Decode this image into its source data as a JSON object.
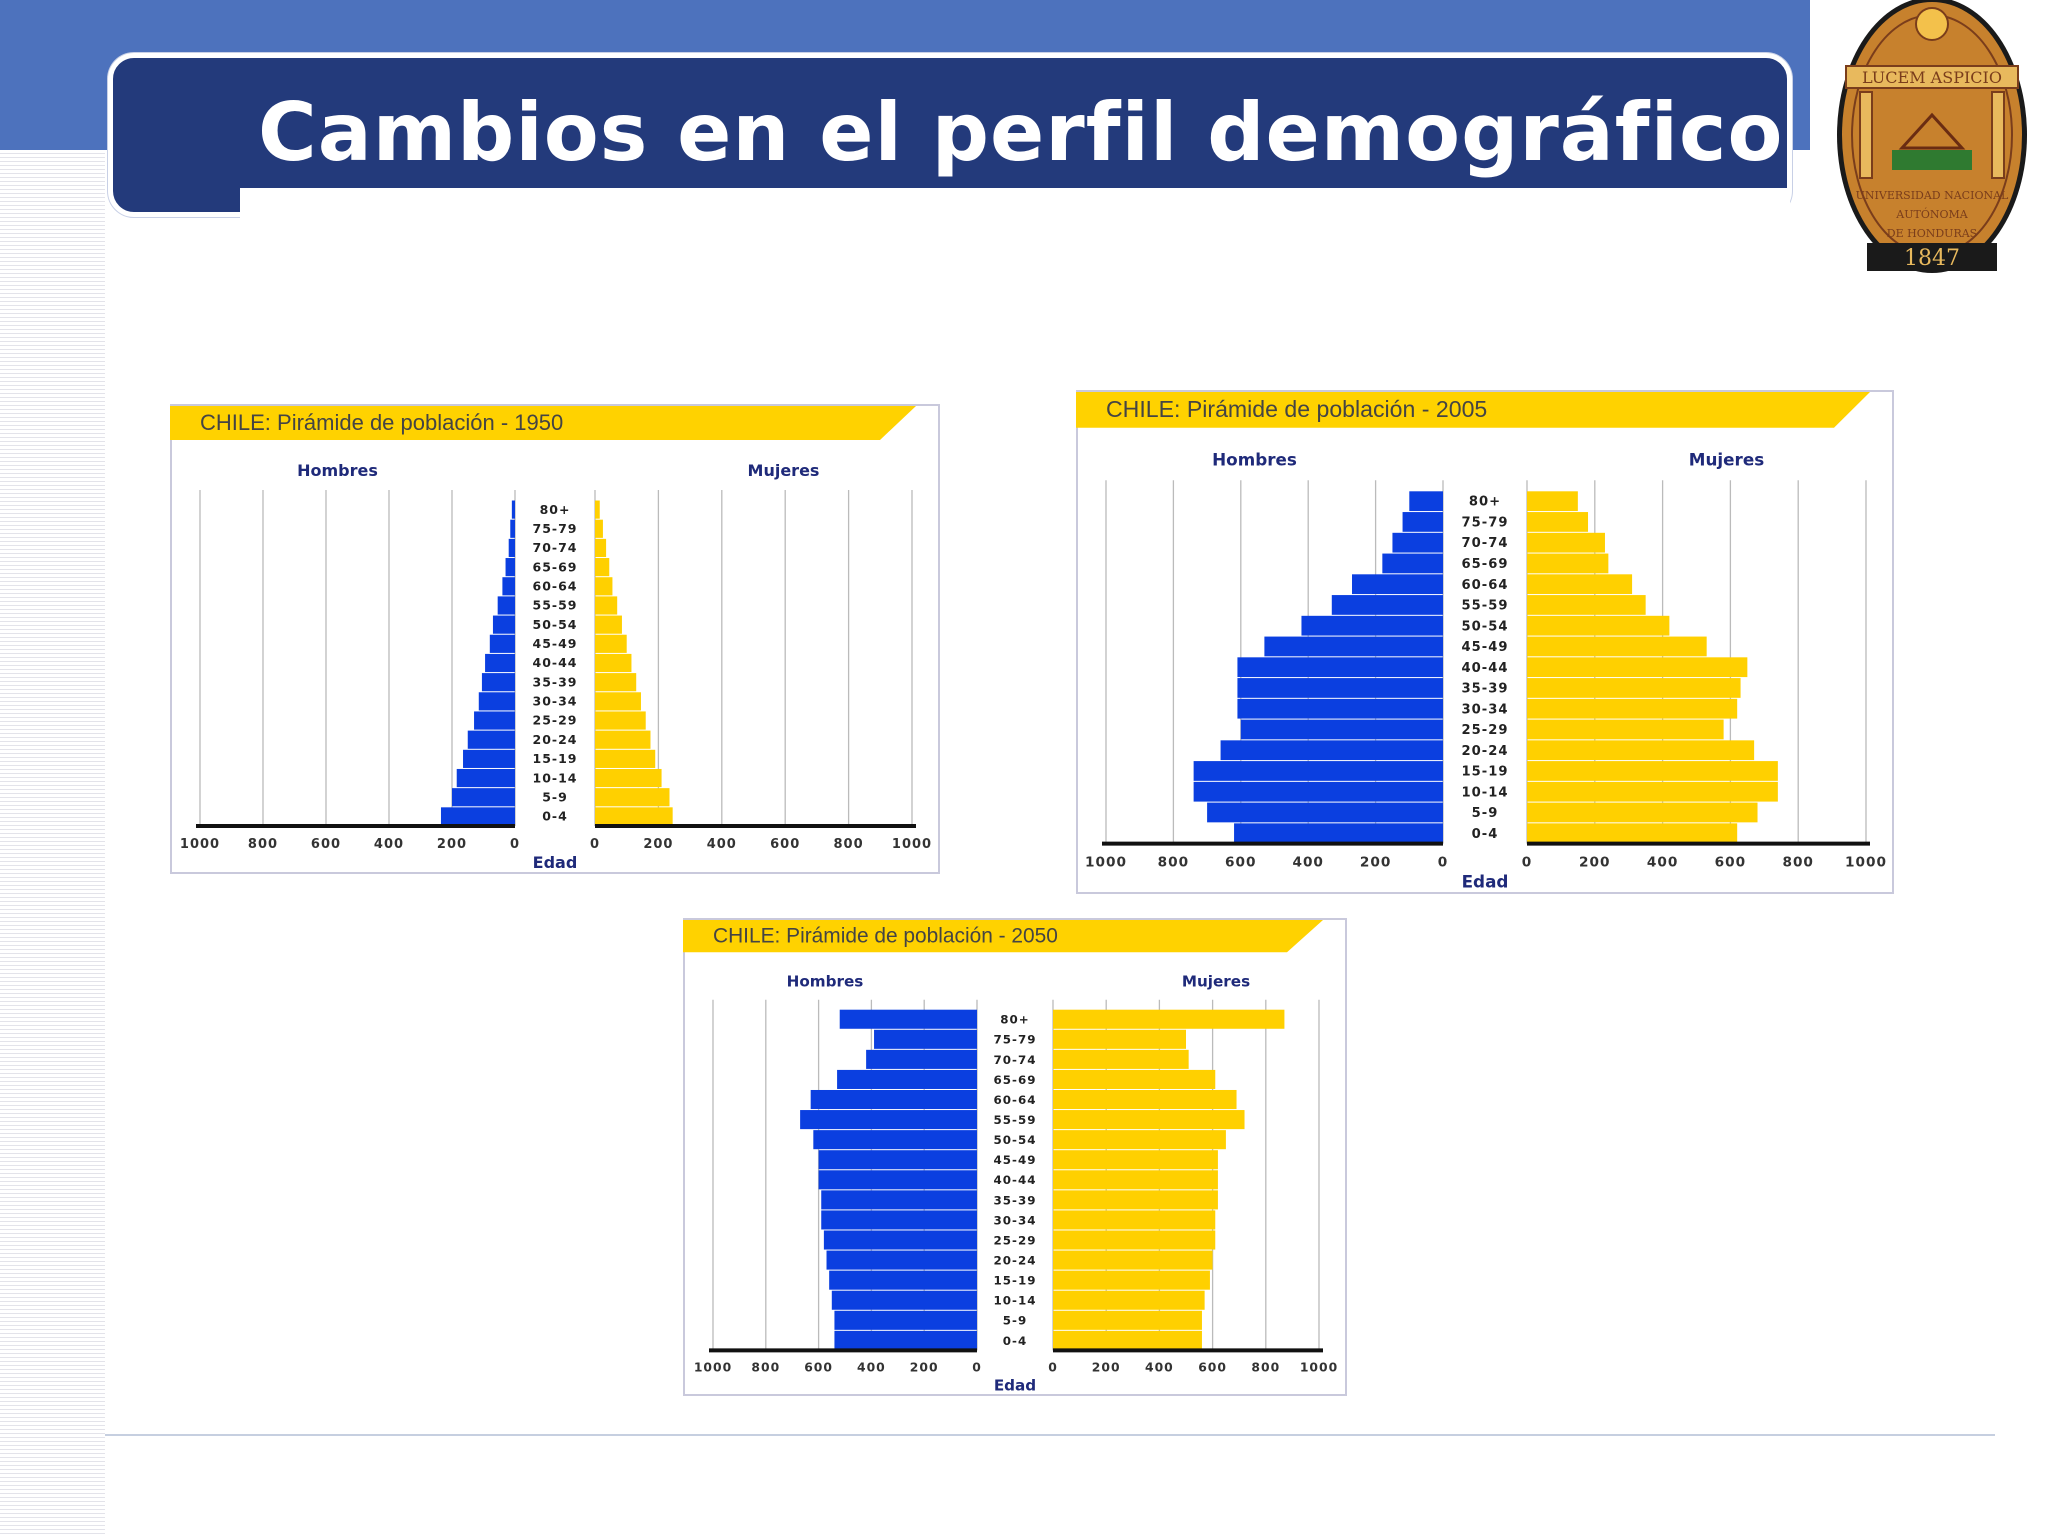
{
  "slide": {
    "title": "Cambios en el perfil demográfico"
  },
  "seal": {
    "motto": "LUCEM ASPICIO",
    "line1": "UNIVERSIDAD NACIONAL",
    "line2": "AUTÓNOMA",
    "line3": "DE HONDURAS",
    "year": "1847"
  },
  "colors": {
    "men": "#0b3fe0",
    "women": "#ffd000",
    "banner": "#ffd200",
    "title_bg": "#233a7b",
    "top_band": "#4d72bd"
  },
  "chart_data": [
    {
      "type": "bar",
      "title": "CHILE: Pirámide de población  - 1950",
      "xlabel": "Edad",
      "left_label": "Hombres",
      "right_label": "Mujeres",
      "categories": [
        "80+",
        "75-79",
        "70-74",
        "65-69",
        "60-64",
        "55-59",
        "50-54",
        "45-49",
        "40-44",
        "35-39",
        "30-34",
        "25-29",
        "20-24",
        "15-19",
        "10-14",
        "5-9",
        "0-4"
      ],
      "xlim": [
        0,
        1000
      ],
      "ticks": [
        "1000",
        "800",
        "600",
        "400",
        "200",
        "0"
      ],
      "ticks_right": [
        "0",
        "200",
        "400",
        "600",
        "800",
        "1000"
      ],
      "series": [
        {
          "name": "Hombres",
          "values": [
            10,
            15,
            20,
            30,
            40,
            55,
            70,
            80,
            95,
            105,
            115,
            130,
            150,
            165,
            185,
            200,
            235
          ]
        },
        {
          "name": "Mujeres",
          "values": [
            15,
            25,
            35,
            45,
            55,
            70,
            85,
            100,
            115,
            130,
            145,
            160,
            175,
            190,
            210,
            235,
            245
          ]
        }
      ]
    },
    {
      "type": "bar",
      "title": "CHILE: Pirámide de población  - 2005",
      "xlabel": "Edad",
      "left_label": "Hombres",
      "right_label": "Mujeres",
      "categories": [
        "80+",
        "75-79",
        "70-74",
        "65-69",
        "60-64",
        "55-59",
        "50-54",
        "45-49",
        "40-44",
        "35-39",
        "30-34",
        "25-29",
        "20-24",
        "15-19",
        "10-14",
        "5-9",
        "0-4"
      ],
      "xlim": [
        0,
        1000
      ],
      "ticks": [
        "1000",
        "800",
        "600",
        "400",
        "200",
        "0"
      ],
      "ticks_right": [
        "0",
        "200",
        "400",
        "600",
        "800",
        "1000"
      ],
      "series": [
        {
          "name": "Hombres",
          "values": [
            100,
            120,
            150,
            180,
            270,
            330,
            420,
            530,
            610,
            610,
            610,
            600,
            660,
            740,
            740,
            700,
            620
          ]
        },
        {
          "name": "Mujeres",
          "values": [
            150,
            180,
            230,
            240,
            310,
            350,
            420,
            530,
            650,
            630,
            620,
            580,
            670,
            740,
            740,
            680,
            620
          ]
        }
      ]
    },
    {
      "type": "bar",
      "title": "CHILE: Pirámide de población  - 2050",
      "xlabel": "Edad",
      "left_label": "Hombres",
      "right_label": "Mujeres",
      "categories": [
        "80+",
        "75-79",
        "70-74",
        "65-69",
        "60-64",
        "55-59",
        "50-54",
        "45-49",
        "40-44",
        "35-39",
        "30-34",
        "25-29",
        "20-24",
        "15-19",
        "10-14",
        "5-9",
        "0-4"
      ],
      "xlim": [
        0,
        1000
      ],
      "ticks": [
        "1000",
        "800",
        "600",
        "400",
        "200",
        "0"
      ],
      "ticks_right": [
        "0",
        "200",
        "400",
        "600",
        "800",
        "1000"
      ],
      "series": [
        {
          "name": "Hombres",
          "values": [
            520,
            390,
            420,
            530,
            630,
            670,
            620,
            600,
            600,
            590,
            590,
            580,
            570,
            560,
            550,
            540,
            540
          ]
        },
        {
          "name": "Mujeres",
          "values": [
            870,
            500,
            510,
            610,
            690,
            720,
            650,
            620,
            620,
            620,
            610,
            610,
            600,
            590,
            570,
            560,
            560
          ]
        }
      ]
    }
  ]
}
